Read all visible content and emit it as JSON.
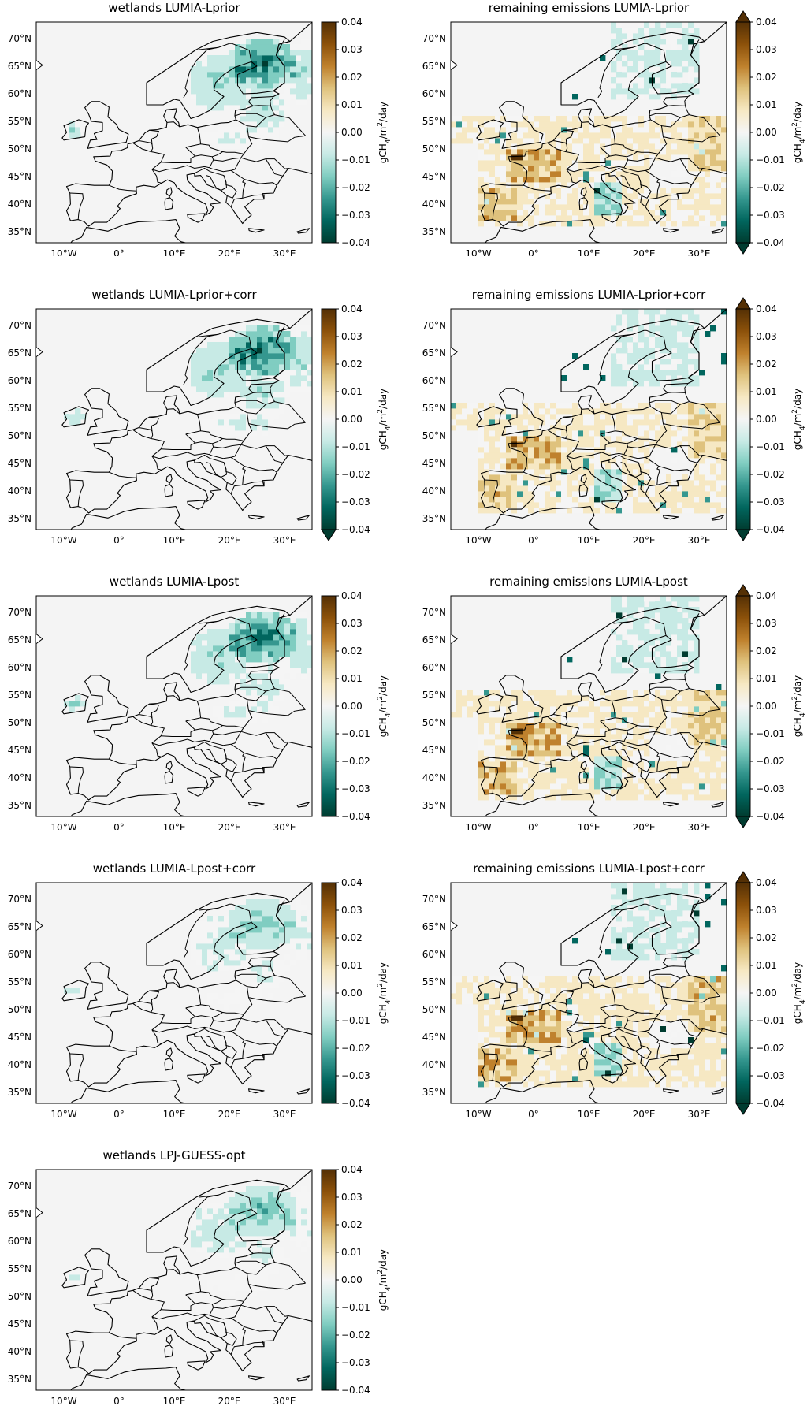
{
  "colorbar": {
    "label_prefix": "gCH",
    "label_sub": "4",
    "label_mid": "/m",
    "label_sup": "2",
    "label_suffix": "/day",
    "ticks": [
      "0.04",
      "0.03",
      "0.02",
      "0.01",
      "0.00",
      "−0.01",
      "−0.02",
      "−0.03",
      "−0.04"
    ],
    "range": [
      -0.04,
      0.04
    ],
    "colors": [
      "#003c30",
      "#01665e",
      "#35978f",
      "#80cdc1",
      "#c7eae5",
      "#f5f5f5",
      "#f6e8c3",
      "#dfc27d",
      "#bf812d",
      "#8c510a",
      "#543005"
    ]
  },
  "map": {
    "lat_ticks": [
      "70°N",
      "65°N",
      "60°N",
      "55°N",
      "50°N",
      "45°N",
      "40°N",
      "35°N"
    ],
    "lon_ticks": [
      "10°W",
      "0°",
      "10°E",
      "20°E",
      "30°E"
    ],
    "lon_range": [
      -15,
      35
    ],
    "lat_range": [
      33,
      73
    ],
    "background": "#f4f4f4",
    "border_color": "#000000"
  },
  "panels": [
    {
      "title": "wetlands LUMIA-Lprior",
      "kind": "wetlands",
      "extend": "none",
      "intensity": 1.0
    },
    {
      "title": "remaining emissions LUMIA-Lprior",
      "kind": "remaining",
      "extend": "both",
      "intensity": 1.0
    },
    {
      "title": "wetlands LUMIA-Lprior+corr",
      "kind": "wetlands",
      "extend": "min",
      "intensity": 1.05
    },
    {
      "title": "remaining emissions LUMIA-Lprior+corr",
      "kind": "remaining",
      "extend": "both",
      "intensity": 1.0
    },
    {
      "title": "wetlands LUMIA-Lpost",
      "kind": "wetlands",
      "extend": "none",
      "intensity": 0.95
    },
    {
      "title": "remaining emissions LUMIA-Lpost",
      "kind": "remaining",
      "extend": "both",
      "intensity": 1.1
    },
    {
      "title": "wetlands LUMIA-Lpost+corr",
      "kind": "wetlands",
      "extend": "none",
      "intensity": 0.55
    },
    {
      "title": "remaining emissions LUMIA-Lpost+corr",
      "kind": "remaining",
      "extend": "both",
      "intensity": 1.15
    },
    {
      "title": "wetlands LPJ-GUESS-opt",
      "kind": "wetlands",
      "extend": "none",
      "intensity": 0.6
    }
  ]
}
